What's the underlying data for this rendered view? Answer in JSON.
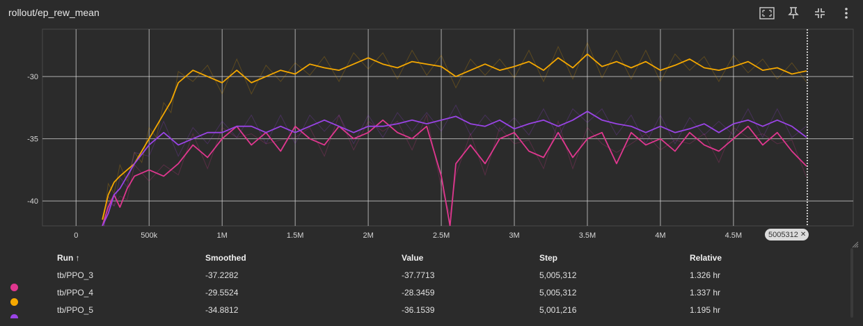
{
  "title": "rollout/ep_rew_mean",
  "toolbar": {
    "icons": [
      "fit-domain-icon",
      "pin-icon",
      "collapse-icon",
      "more-vert-icon"
    ]
  },
  "step_marker": "5005312",
  "step_marker_close": "✕",
  "table": {
    "headers": [
      "Run ↑",
      "Smoothed",
      "Value",
      "Step",
      "Relative"
    ],
    "rows": [
      {
        "color": "#e0378f",
        "run": "tb/PPO_3",
        "smoothed": "-37.2282",
        "value": "-37.7713",
        "step": "5,005,312",
        "relative": "1.326 hr"
      },
      {
        "color": "#f5a800",
        "run": "tb/PPO_4",
        "smoothed": "-29.5524",
        "value": "-28.3459",
        "step": "5,005,312",
        "relative": "1.337 hr"
      },
      {
        "color": "#9a44e6",
        "run": "tb/PPO_5",
        "smoothed": "-34.8812",
        "value": "-36.1539",
        "step": "5,001,216",
        "relative": "1.195 hr"
      }
    ]
  },
  "chart_data": {
    "type": "line",
    "title": "rollout/ep_rew_mean",
    "xlabel": "",
    "ylabel": "",
    "xlim": [
      -230000,
      5320000
    ],
    "ylim": [
      -42,
      -26.2
    ],
    "x_ticks": [
      0,
      500000,
      1000000,
      1500000,
      2000000,
      2500000,
      3000000,
      3500000,
      4000000,
      4500000
    ],
    "x_tick_labels": [
      "0",
      "500k",
      "1M",
      "1.5M",
      "2M",
      "2.5M",
      "3M",
      "3.5M",
      "4M",
      "4.5M"
    ],
    "y_ticks": [
      -40,
      -35,
      -30
    ],
    "y_tick_labels": [
      "-40",
      "-35",
      "-30"
    ],
    "grid": true,
    "marker_step": 5005312,
    "series": [
      {
        "name": "tb/PPO_3",
        "color": "#e0378f",
        "x": [
          180000,
          220000,
          260000,
          300000,
          350000,
          400000,
          500000,
          600000,
          700000,
          800000,
          900000,
          1000000,
          1100000,
          1200000,
          1300000,
          1400000,
          1500000,
          1600000,
          1700000,
          1800000,
          1900000,
          2000000,
          2100000,
          2200000,
          2300000,
          2400000,
          2500000,
          2560000,
          2600000,
          2700000,
          2800000,
          2900000,
          3000000,
          3100000,
          3200000,
          3300000,
          3400000,
          3500000,
          3600000,
          3700000,
          3800000,
          3900000,
          4000000,
          4100000,
          4200000,
          4300000,
          4400000,
          4500000,
          4600000,
          4700000,
          4800000,
          4900000,
          5000000
        ],
        "values": [
          -42,
          -40.5,
          -39.5,
          -40.5,
          -39,
          -38,
          -37.5,
          -38,
          -37,
          -35.5,
          -36.5,
          -35,
          -34,
          -35.5,
          -34.5,
          -36,
          -34,
          -35,
          -35.5,
          -34,
          -35,
          -34.5,
          -33.5,
          -34.5,
          -35,
          -34,
          -38,
          -42,
          -37,
          -35.5,
          -37,
          -35,
          -34.5,
          -36,
          -36.5,
          -34.5,
          -36.5,
          -35,
          -34.5,
          -37,
          -34.5,
          -35.5,
          -35,
          -36,
          -34.5,
          -35.5,
          -36,
          -35,
          -34,
          -35.5,
          -34.5,
          -36,
          -37.2
        ]
      },
      {
        "name": "tb/PPO_4",
        "color": "#f5a800",
        "x": [
          180000,
          220000,
          260000,
          300000,
          350000,
          400000,
          450000,
          500000,
          550000,
          600000,
          650000,
          700000,
          800000,
          900000,
          1000000,
          1100000,
          1200000,
          1300000,
          1400000,
          1500000,
          1600000,
          1700000,
          1800000,
          1900000,
          2000000,
          2100000,
          2200000,
          2300000,
          2400000,
          2500000,
          2600000,
          2700000,
          2800000,
          2900000,
          3000000,
          3100000,
          3200000,
          3300000,
          3400000,
          3500000,
          3600000,
          3700000,
          3800000,
          3900000,
          4000000,
          4100000,
          4200000,
          4300000,
          4400000,
          4500000,
          4600000,
          4700000,
          4800000,
          4900000,
          5000000
        ],
        "values": [
          -41.5,
          -39.5,
          -38.5,
          -38,
          -37.5,
          -37,
          -36,
          -35,
          -34,
          -33,
          -32,
          -30.5,
          -29.5,
          -30,
          -30.5,
          -29.5,
          -30.5,
          -30,
          -29.5,
          -29.8,
          -29,
          -29.3,
          -29.5,
          -29,
          -28.5,
          -29,
          -29.3,
          -28.8,
          -29,
          -29.2,
          -30,
          -29.5,
          -29,
          -29.5,
          -29.2,
          -28.8,
          -29.5,
          -28.5,
          -29.3,
          -28.2,
          -29.2,
          -28.8,
          -29.3,
          -28.8,
          -29.5,
          -29.1,
          -28.6,
          -29.3,
          -29.5,
          -29.2,
          -28.8,
          -29.5,
          -29.3,
          -29.8,
          -29.55
        ]
      },
      {
        "name": "tb/PPO_5",
        "color": "#9a44e6",
        "x": [
          180000,
          220000,
          260000,
          300000,
          350000,
          400000,
          500000,
          600000,
          700000,
          800000,
          900000,
          1000000,
          1100000,
          1200000,
          1300000,
          1400000,
          1500000,
          1600000,
          1700000,
          1800000,
          1900000,
          2000000,
          2100000,
          2200000,
          2300000,
          2400000,
          2500000,
          2600000,
          2700000,
          2800000,
          2900000,
          3000000,
          3100000,
          3200000,
          3300000,
          3400000,
          3500000,
          3600000,
          3700000,
          3800000,
          3900000,
          4000000,
          4100000,
          4200000,
          4300000,
          4400000,
          4500000,
          4600000,
          4700000,
          4800000,
          4900000,
          5000000
        ],
        "values": [
          -42,
          -41,
          -39.5,
          -39,
          -38,
          -37,
          -35.5,
          -34.5,
          -35.5,
          -35,
          -34.5,
          -34.5,
          -34,
          -34,
          -34.5,
          -34,
          -34.5,
          -34,
          -33.5,
          -34,
          -34.5,
          -34,
          -34,
          -33.8,
          -33.5,
          -33.8,
          -33.5,
          -33.2,
          -33.8,
          -34,
          -33.5,
          -34.2,
          -33.8,
          -33.5,
          -34,
          -33.5,
          -32.8,
          -33.5,
          -33.8,
          -34,
          -34.5,
          -34,
          -34.5,
          -34.2,
          -33.8,
          -34.5,
          -33.8,
          -33.5,
          -34,
          -33.5,
          -34,
          -34.88
        ]
      }
    ]
  }
}
